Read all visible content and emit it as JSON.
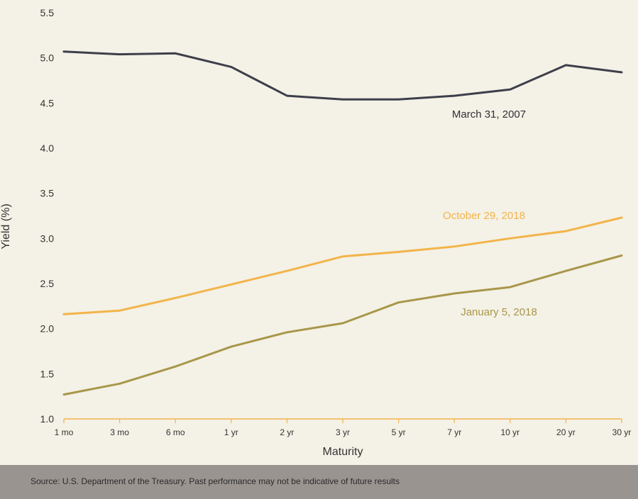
{
  "chart_data": {
    "type": "line",
    "xlabel": "Maturity",
    "ylabel": "Yield (%)",
    "ylim": [
      1.0,
      5.5
    ],
    "yticks": [
      "1.0",
      "1.5",
      "2.0",
      "2.5",
      "3.0",
      "3.5",
      "4.0",
      "4.5",
      "5.0",
      "5.5"
    ],
    "categories": [
      "1 mo",
      "3 mo",
      "6 mo",
      "1 yr",
      "2 yr",
      "3 yr",
      "5 yr",
      "7 yr",
      "10 yr",
      "20 yr",
      "30 yr"
    ],
    "grid": false,
    "series": [
      {
        "name": "March 31, 2007",
        "color": "#3d3f4a",
        "values": [
          5.07,
          5.04,
          5.05,
          4.9,
          4.58,
          4.54,
          4.54,
          4.58,
          4.65,
          4.92,
          4.84
        ]
      },
      {
        "name": "October 29, 2018",
        "color": "#f2b44a",
        "values": [
          2.16,
          2.2,
          2.34,
          2.49,
          2.64,
          2.8,
          2.85,
          2.91,
          3.0,
          3.08,
          3.23
        ]
      },
      {
        "name": "January 5, 2018",
        "color": "#a8974a",
        "values": [
          1.27,
          1.39,
          1.58,
          1.8,
          1.96,
          2.06,
          2.29,
          2.39,
          2.46,
          2.64,
          2.81
        ]
      }
    ]
  },
  "footer": {
    "source": "Source: U.S. Department of the Treasury.  Past performance may not be indicative of future results"
  }
}
